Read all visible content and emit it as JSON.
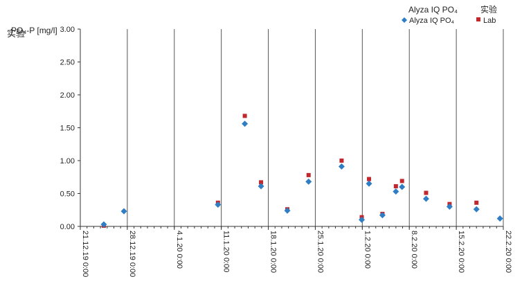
{
  "chart_data": {
    "type": "scatter",
    "ylabel": "PO₄-P [mg/l]",
    "ylabel_overlay": "实验",
    "ylim": [
      0,
      3
    ],
    "yticks": [
      "0.00",
      "0.50",
      "1.00",
      "1.50",
      "2.00",
      "2.50",
      "3.00"
    ],
    "ytick_values": [
      0,
      0.5,
      1,
      1.5,
      2,
      2.5,
      3
    ],
    "xlim": [
      "2019-12-21T00:00",
      "2020-02-22T00:00"
    ],
    "xticks": [
      "21.12.19 0:00",
      "28.12.19 0:00",
      "4.1.20 0:00",
      "11.1.20 0:00",
      "18.1.20 0:00",
      "25.1.20 0:00",
      "1.2.20 0:00",
      "8.2.20 0:00",
      "15.2.20 0:00",
      "22.2.20 0:00"
    ],
    "xtick_values": [
      "2019-12-21T00:00",
      "2019-12-28T00:00",
      "2020-01-04T00:00",
      "2020-01-11T00:00",
      "2020-01-18T00:00",
      "2020-01-25T00:00",
      "2020-02-01T00:00",
      "2020-02-08T00:00",
      "2020-02-15T00:00",
      "2020-02-22T00:00"
    ],
    "grid": "vertical",
    "legend": {
      "placement": "top-right",
      "headers": [
        "Alyza IQ PO₄",
        "实验"
      ],
      "entries": [
        "Alyza IQ PO₄",
        "Lab"
      ]
    },
    "series": [
      {
        "name": "Alyza IQ PO₄",
        "color": "#2f7ec4",
        "marker": "diamond",
        "points": [
          [
            "2019-12-24T12:00",
            0.03
          ],
          [
            "2019-12-27T12:00",
            0.23
          ],
          [
            "2020-01-10T12:00",
            0.33
          ],
          [
            "2020-01-14T12:00",
            1.56
          ],
          [
            "2020-01-16T22:00",
            0.61
          ],
          [
            "2020-01-20T20:00",
            0.24
          ],
          [
            "2020-01-24T00:00",
            0.68
          ],
          [
            "2020-01-28T22:00",
            0.91
          ],
          [
            "2020-01-31T22:00",
            0.1
          ],
          [
            "2020-02-02T00:00",
            0.65
          ],
          [
            "2020-02-04T00:00",
            0.17
          ],
          [
            "2020-02-06T00:00",
            0.53
          ],
          [
            "2020-02-06T22:00",
            0.6
          ],
          [
            "2020-02-10T12:00",
            0.42
          ],
          [
            "2020-02-14T00:00",
            0.3
          ],
          [
            "2020-02-18T00:00",
            0.26
          ],
          [
            "2020-02-21T12:00",
            0.12
          ]
        ]
      },
      {
        "name": "Lab",
        "color": "#c0282d",
        "marker": "square",
        "points": [
          [
            "2019-12-24T12:00",
            0.01
          ],
          [
            "2020-01-10T12:00",
            0.36
          ],
          [
            "2020-01-14T12:00",
            1.68
          ],
          [
            "2020-01-16T22:00",
            0.67
          ],
          [
            "2020-01-20T20:00",
            0.26
          ],
          [
            "2020-01-24T00:00",
            0.78
          ],
          [
            "2020-01-28T22:00",
            1.0
          ],
          [
            "2020-01-31T22:00",
            0.14
          ],
          [
            "2020-02-02T00:00",
            0.72
          ],
          [
            "2020-02-04T00:00",
            0.19
          ],
          [
            "2020-02-06T00:00",
            0.61
          ],
          [
            "2020-02-06T22:00",
            0.69
          ],
          [
            "2020-02-10T12:00",
            0.51
          ],
          [
            "2020-02-14T00:00",
            0.34
          ],
          [
            "2020-02-18T00:00",
            0.36
          ]
        ]
      }
    ]
  }
}
